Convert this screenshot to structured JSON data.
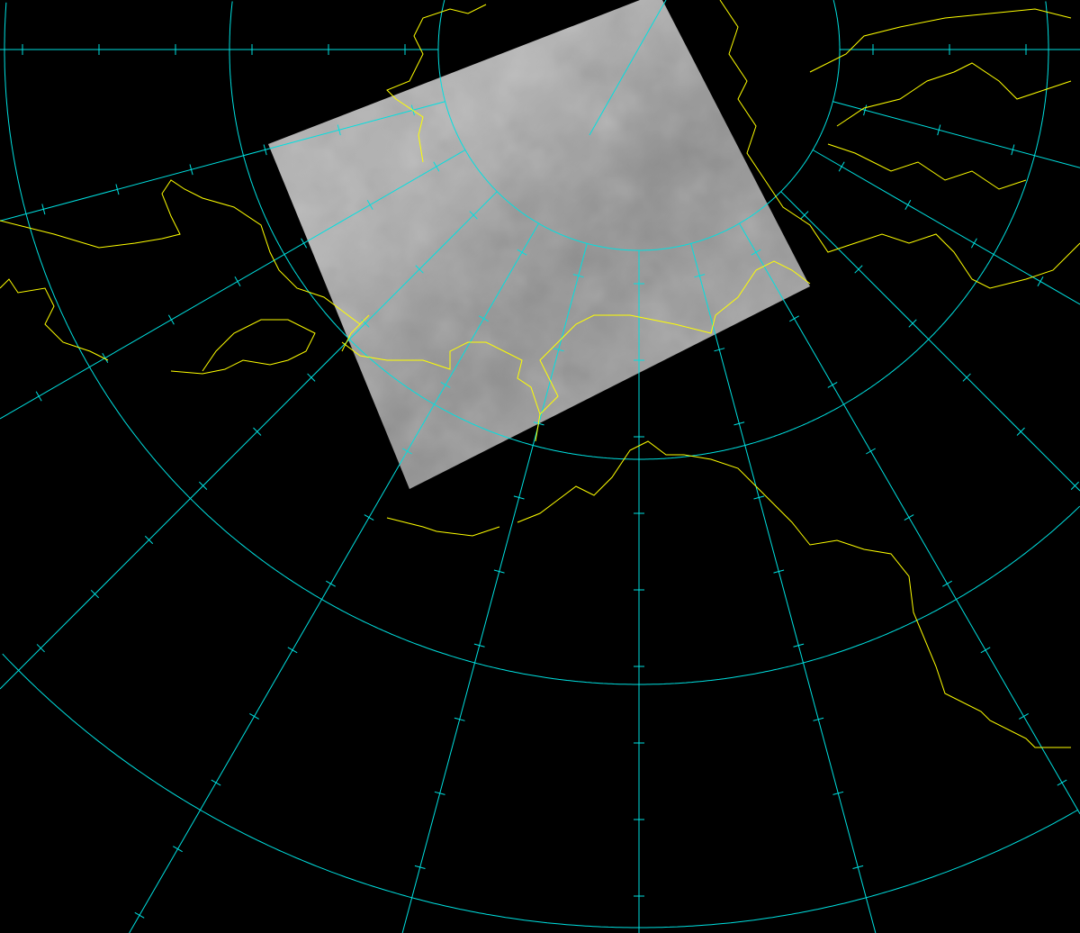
{
  "map": {
    "type": "satellite-image-overlay",
    "projection": "polar-stereographic",
    "background": "#000000",
    "grid_color": "#00e0e0",
    "coastline_color": "#ffff00",
    "image_tone": "#9a9a9a",
    "meridian_interval_deg": 15,
    "parallel_count": 4
  }
}
